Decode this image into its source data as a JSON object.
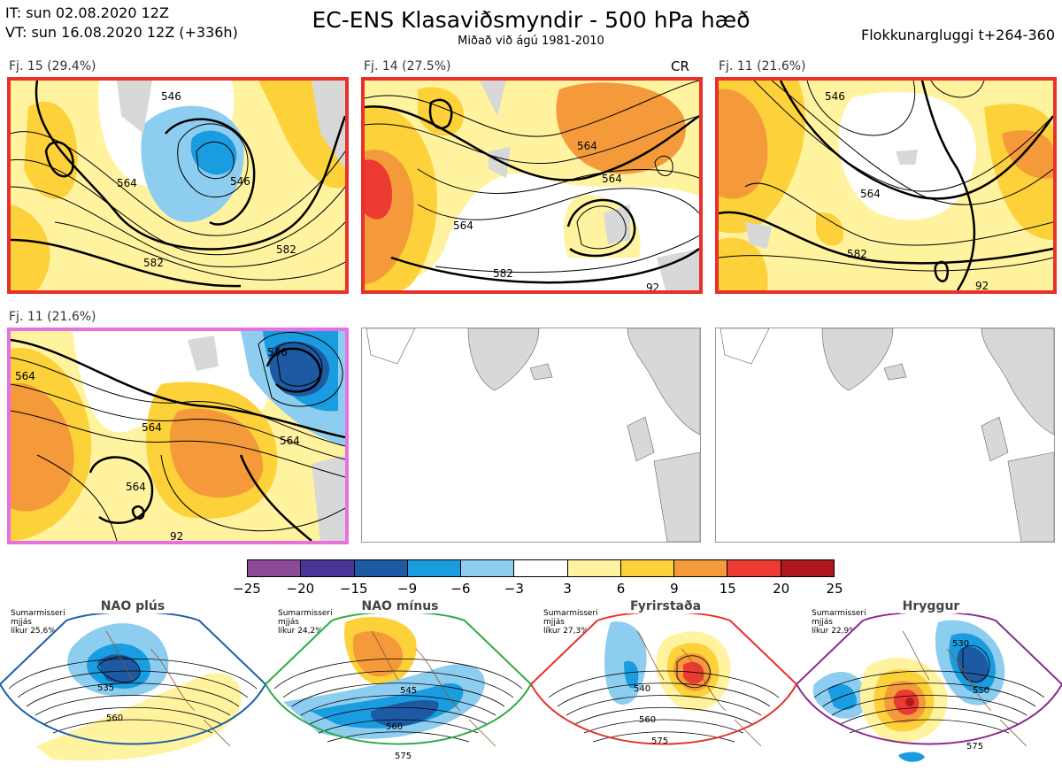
{
  "header": {
    "init_time": "IT: sun 02.08.2020 12Z",
    "valid_time": "VT: sun 16.08.2020 12Z  (+336h)",
    "title": "EC-ENS Klasaviðsmyndir - 500 hPa hæð",
    "subtitle": "Miðað við ágú 1981-2010",
    "window": "Flokkunargluggi t+264-360"
  },
  "panels": [
    {
      "label": "Fj. 15 (29.4%)",
      "border_color": "#e8312b",
      "contours": [
        "546",
        "564",
        "546",
        "582",
        "582"
      ]
    },
    {
      "label": "Fj. 14 (27.5%)",
      "tag": "CR",
      "border_color": "#e8312b",
      "contours": [
        "564",
        "564",
        "564",
        "582",
        "92"
      ]
    },
    {
      "label": "Fj. 11 (21.6%)",
      "border_color": "#e8312b",
      "contours": [
        "546",
        "564",
        "582",
        "92"
      ]
    },
    {
      "label": "Fj. 11 (21.6%)",
      "border_color": "#e870e0",
      "contours": [
        "546",
        "564",
        "564",
        "564",
        "564",
        "92"
      ]
    },
    {
      "label": "",
      "border_color": "#999999"
    },
    {
      "label": "",
      "border_color": "#999999"
    }
  ],
  "colorbar": {
    "colors": [
      "#8e4a98",
      "#4a3596",
      "#1e5aa3",
      "#1a9de0",
      "#8dcdf0",
      "#ffffff",
      "#fff3a0",
      "#fdd13a",
      "#f59a3a",
      "#ea3a32",
      "#b0171c"
    ],
    "ticks": [
      "−25",
      "−20",
      "−15",
      "−9",
      "−6",
      "−3",
      "3",
      "6",
      "9",
      "15",
      "20",
      "25"
    ]
  },
  "regimes": [
    {
      "name": "NAO plús",
      "season": "Sumarmisseri",
      "status": "mjjás",
      "prob": "líkur 25,6%",
      "color": "#1b5ea8",
      "contours": [
        "535",
        "560"
      ]
    },
    {
      "name": "NAO mínus",
      "season": "Sumarmisseri",
      "status": "mjjás",
      "prob": "líkur 24,2%",
      "color": "#2eaa4a",
      "contours": [
        "545",
        "560",
        "575"
      ]
    },
    {
      "name": "Fyrirstaða",
      "season": "Sumarmisseri",
      "status": "mjjás",
      "prob": "líkur 27,3%",
      "color": "#e8312b",
      "contours": [
        "540",
        "560",
        "575"
      ]
    },
    {
      "name": "Hryggur",
      "season": "Sumarmisseri",
      "status": "mjjás",
      "prob": "líkur 22,9%",
      "color": "#8b2a8f",
      "contours": [
        "530",
        "550",
        "575"
      ]
    }
  ]
}
